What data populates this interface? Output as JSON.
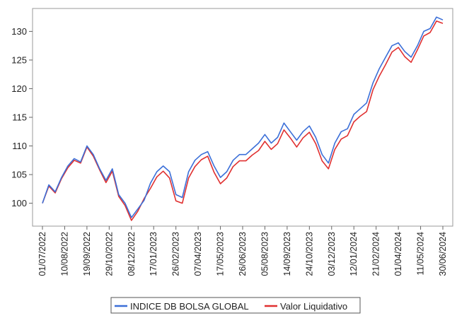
{
  "chart_data": {
    "type": "line",
    "title": "",
    "xlabel": "",
    "ylabel": "",
    "ylim": [
      96,
      134
    ],
    "y_ticks": [
      100,
      105,
      110,
      115,
      120,
      125,
      130
    ],
    "x_tick_labels": [
      "01/07/2022",
      "10/08/2022",
      "19/09/2022",
      "29/10/2022",
      "08/12/2022",
      "17/01/2023",
      "26/02/2023",
      "07/04/2023",
      "17/05/2023",
      "26/06/2023",
      "05/08/2023",
      "14/09/2023",
      "24/10/2023",
      "03/12/2023",
      "12/01/2024",
      "21/02/2024",
      "01/04/2024",
      "11/05/2024",
      "30/06/2024"
    ],
    "grid": false,
    "legend_position": "bottom",
    "series": [
      {
        "name": "INDICE DB BOLSA GLOBAL",
        "color": "#3b6fd8",
        "values": [
          100.0,
          103.2,
          102.0,
          104.5,
          106.5,
          107.8,
          107.2,
          110.0,
          108.5,
          106.0,
          104.0,
          106.0,
          101.5,
          100.0,
          97.5,
          99.0,
          100.5,
          103.5,
          105.5,
          106.5,
          105.5,
          101.5,
          101.0,
          105.5,
          107.5,
          108.5,
          109.0,
          106.5,
          104.5,
          105.5,
          107.5,
          108.5,
          108.5,
          109.5,
          110.5,
          112.0,
          110.5,
          111.5,
          114.0,
          112.5,
          111.0,
          112.5,
          113.5,
          111.5,
          108.5,
          107.0,
          110.5,
          112.5,
          113.0,
          115.5,
          116.5,
          117.5,
          121.0,
          123.5,
          125.5,
          127.5,
          128.0,
          126.5,
          125.5,
          127.5,
          130.0,
          130.5,
          132.5,
          132.0
        ]
      },
      {
        "name": "Valor Liquidativo",
        "color": "#e03030",
        "values": [
          100.0,
          103.0,
          101.8,
          104.3,
          106.2,
          107.5,
          107.0,
          109.8,
          108.2,
          105.8,
          103.6,
          105.6,
          101.2,
          99.6,
          97.0,
          98.6,
          100.8,
          102.6,
          104.6,
          105.6,
          104.4,
          100.4,
          100.0,
          104.4,
          106.4,
          107.6,
          108.2,
          105.4,
          103.4,
          104.4,
          106.4,
          107.4,
          107.4,
          108.4,
          109.2,
          110.8,
          109.4,
          110.4,
          112.8,
          111.4,
          109.8,
          111.4,
          112.4,
          110.4,
          107.4,
          106.0,
          109.4,
          111.2,
          111.8,
          114.2,
          115.2,
          116.0,
          119.8,
          122.2,
          124.2,
          126.4,
          127.2,
          125.6,
          124.6,
          126.8,
          129.2,
          129.8,
          131.8,
          131.4
        ]
      }
    ]
  }
}
